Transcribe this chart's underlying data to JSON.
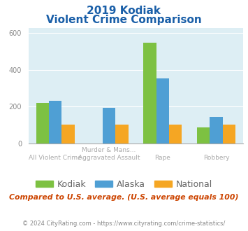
{
  "title_line1": "2019 Kodiak",
  "title_line2": "Violent Crime Comparison",
  "cat_labels_top": [
    "",
    "Murder & Mans...",
    "",
    ""
  ],
  "cat_labels_bot": [
    "All Violent Crime",
    "Aggravated Assault",
    "Rape",
    "Robbery"
  ],
  "kodiak": [
    220,
    0,
    550,
    85
  ],
  "alaska": [
    232,
    192,
    355,
    142
  ],
  "national": [
    100,
    100,
    100,
    100
  ],
  "kodiak_color": "#7dc142",
  "alaska_color": "#4f9fd4",
  "national_color": "#f5a623",
  "ylim": [
    0,
    630
  ],
  "yticks": [
    0,
    200,
    400,
    600
  ],
  "background_color": "#ddeef4",
  "subtitle": "Compared to U.S. average. (U.S. average equals 100)",
  "footer": "© 2024 CityRating.com - https://www.cityrating.com/crime-statistics/",
  "title_color": "#1a5fa8",
  "subtitle_color": "#cc4400",
  "footer_color": "#888888"
}
